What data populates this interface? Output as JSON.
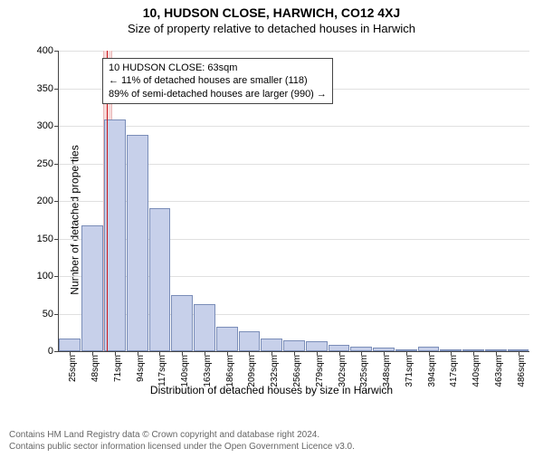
{
  "title": "10, HUDSON CLOSE, HARWICH, CO12 4XJ",
  "subtitle": "Size of property relative to detached houses in Harwich",
  "ylabel": "Number of detached properties",
  "xlabel": "Distribution of detached houses by size in Harwich",
  "footer_line1": "Contains HM Land Registry data © Crown copyright and database right 2024.",
  "footer_line2": "Contains public sector information licensed under the Open Government Licence v3.0.",
  "chart": {
    "type": "histogram",
    "ylim": [
      0,
      400
    ],
    "ytick_step": 50,
    "bar_color": "#c7d0ea",
    "bar_border": "#7a8db8",
    "grid_color": "#e0e0e0",
    "ref_line_color": "#cc181e",
    "ref_shade_color": "#f6dada",
    "ref_shade_border": "#e9b8b8",
    "background_color": "#ffffff",
    "categories": [
      "25sqm",
      "48sqm",
      "71sqm",
      "94sqm",
      "117sqm",
      "140sqm",
      "163sqm",
      "186sqm",
      "209sqm",
      "232sqm",
      "256sqm",
      "279sqm",
      "302sqm",
      "325sqm",
      "348sqm",
      "371sqm",
      "394sqm",
      "417sqm",
      "440sqm",
      "463sqm",
      "486sqm"
    ],
    "values": [
      17,
      168,
      308,
      288,
      190,
      75,
      63,
      33,
      27,
      17,
      15,
      13,
      9,
      6,
      5,
      2,
      6,
      2,
      0,
      3,
      3
    ],
    "ref_value_sqm": 63,
    "ref_range_sqm": [
      25,
      486
    ],
    "annotation": {
      "line1": "10 HUDSON CLOSE: 63sqm",
      "line2": "← 11% of detached houses are smaller (118)",
      "line3": "89% of semi-detached houses are larger (990) →"
    }
  }
}
